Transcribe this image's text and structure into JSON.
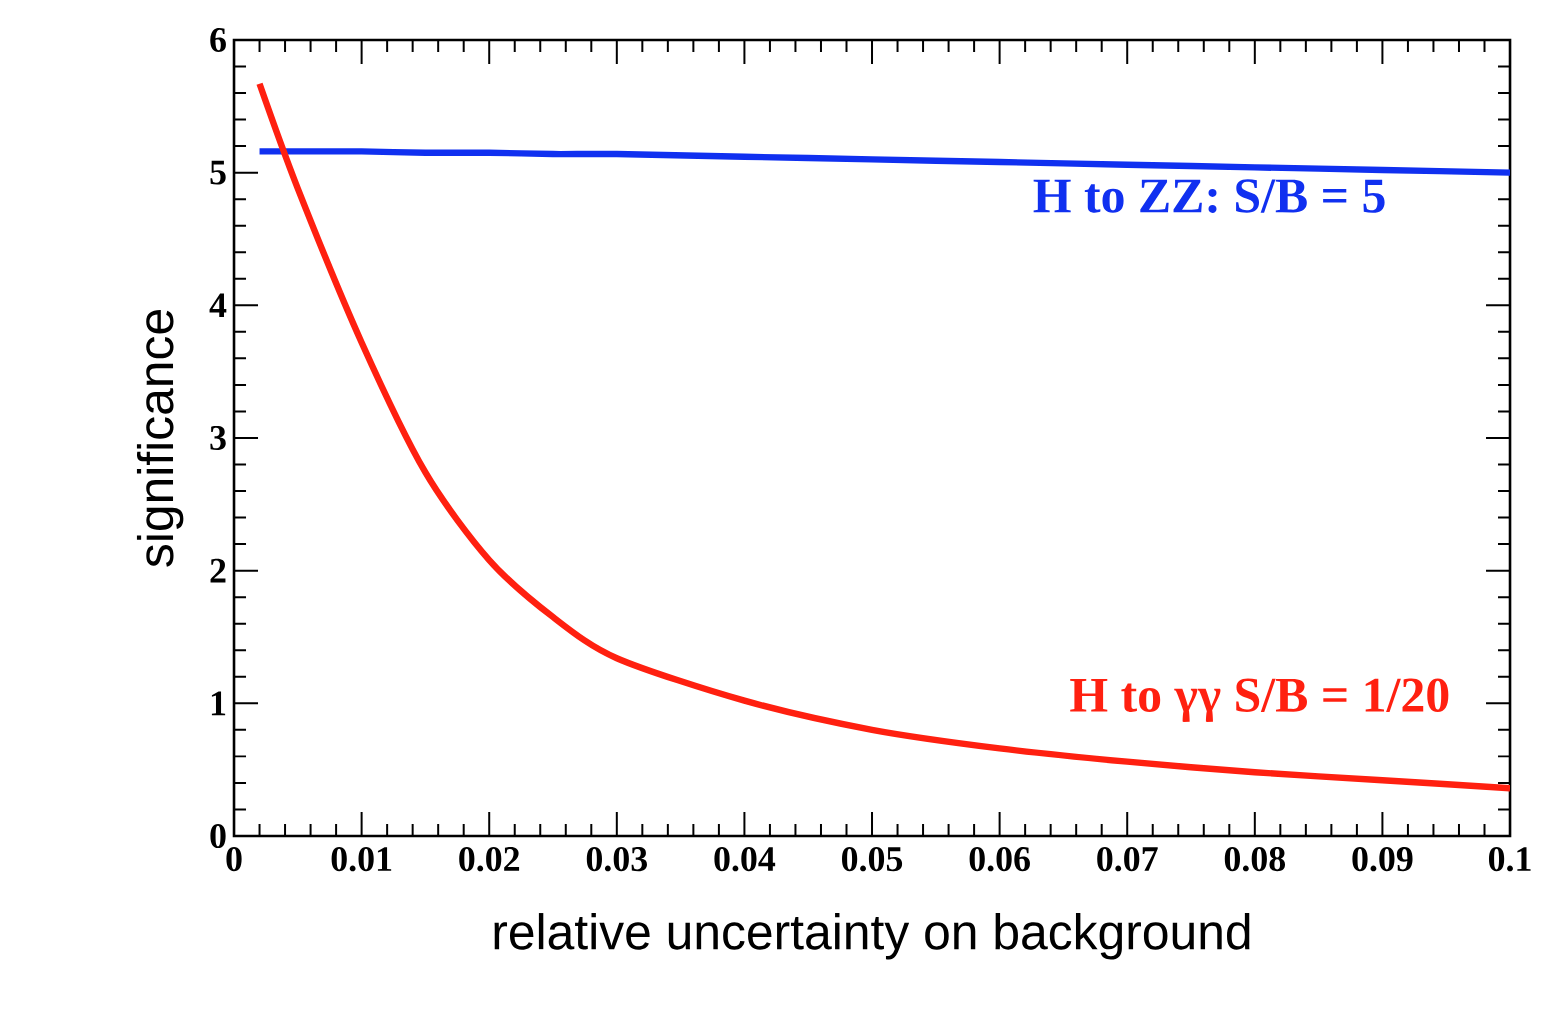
{
  "chart_data": {
    "type": "line",
    "xlabel": "relative uncertainty on background",
    "ylabel": "significance",
    "x": [
      0.002,
      0.005,
      0.01,
      0.015,
      0.02,
      0.025,
      0.03,
      0.04,
      0.05,
      0.06,
      0.07,
      0.08,
      0.09,
      0.1
    ],
    "series": [
      {
        "name": "H to ZZ: S/B = 5",
        "color": "#1030f0",
        "values": [
          5.16,
          5.16,
          5.16,
          5.15,
          5.15,
          5.14,
          5.14,
          5.12,
          5.1,
          5.08,
          5.06,
          5.04,
          5.02,
          5.0
        ]
      },
      {
        "name": "H to γγ S/B = 1/20",
        "color": "#ff2010",
        "values": [
          5.67,
          4.88,
          3.72,
          2.74,
          2.08,
          1.65,
          1.34,
          1.02,
          0.8,
          0.66,
          0.56,
          0.48,
          0.42,
          0.36
        ]
      }
    ],
    "xlim": [
      0,
      0.1
    ],
    "ylim": [
      0,
      6
    ],
    "xticks": [
      0,
      0.01,
      0.02,
      0.03,
      0.04,
      0.05,
      0.06,
      0.07,
      0.08,
      0.09,
      0.1
    ],
    "yticks": [
      0,
      1,
      2,
      3,
      4,
      5,
      6
    ],
    "grid": false,
    "legend": false,
    "marker": "none",
    "line_style": "solid"
  }
}
